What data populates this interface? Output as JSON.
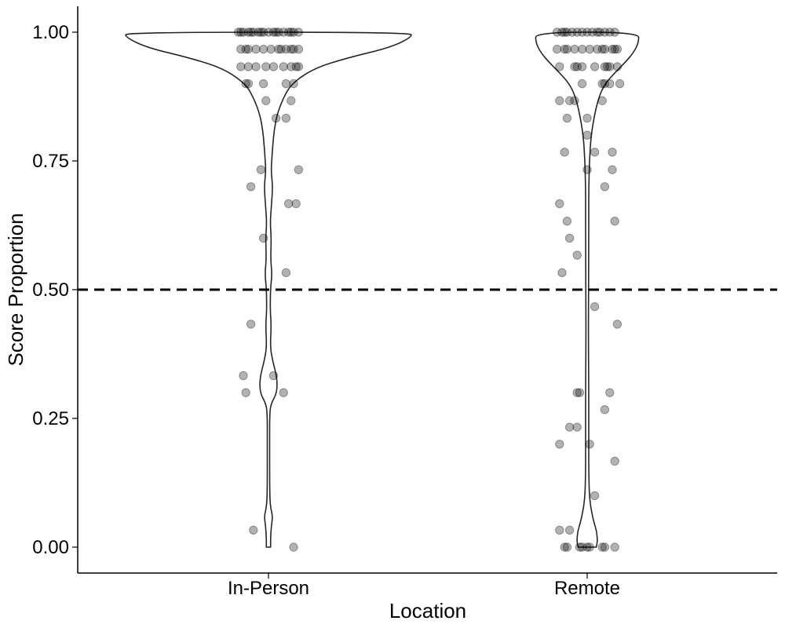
{
  "chart_data": {
    "type": "violin",
    "title": "",
    "xlabel": "Location",
    "ylabel": "Score Proportion",
    "categories": [
      "In-Person",
      "Remote"
    ],
    "ylim": [
      -0.05,
      1.05
    ],
    "yticks": [
      0.0,
      0.25,
      0.5,
      0.75,
      1.0
    ],
    "ytick_labels": [
      "0.00",
      "0.25",
      "0.50",
      "0.75",
      "1.00"
    ],
    "reference_line": {
      "y": 0.5,
      "style": "dashed"
    },
    "grid": false,
    "legend": "none",
    "point_color": "#000000",
    "violin_color": "#262626",
    "density": {
      "In-Person": [
        [
          0.0,
          0.015
        ],
        [
          0.02,
          0.015
        ],
        [
          0.04,
          0.02
        ],
        [
          0.06,
          0.03
        ],
        [
          0.08,
          0.012
        ],
        [
          0.12,
          0.008
        ],
        [
          0.2,
          0.008
        ],
        [
          0.26,
          0.008
        ],
        [
          0.28,
          0.02
        ],
        [
          0.3,
          0.06
        ],
        [
          0.33,
          0.06
        ],
        [
          0.36,
          0.03
        ],
        [
          0.39,
          0.012
        ],
        [
          0.43,
          0.02
        ],
        [
          0.46,
          0.012
        ],
        [
          0.5,
          0.014
        ],
        [
          0.53,
          0.025
        ],
        [
          0.56,
          0.015
        ],
        [
          0.6,
          0.02
        ],
        [
          0.63,
          0.012
        ],
        [
          0.66,
          0.02
        ],
        [
          0.7,
          0.03
        ],
        [
          0.73,
          0.018
        ],
        [
          0.76,
          0.025
        ],
        [
          0.78,
          0.03
        ],
        [
          0.81,
          0.04
        ],
        [
          0.84,
          0.06
        ],
        [
          0.87,
          0.1
        ],
        [
          0.9,
          0.16
        ],
        [
          0.93,
          0.32
        ],
        [
          0.95,
          0.55
        ],
        [
          0.97,
          0.85
        ],
        [
          0.99,
          1.0
        ],
        [
          1.0,
          1.0
        ]
      ],
      "Remote": [
        [
          0.0,
          0.14
        ],
        [
          0.01,
          0.16
        ],
        [
          0.03,
          0.15
        ],
        [
          0.05,
          0.1
        ],
        [
          0.08,
          0.05
        ],
        [
          0.11,
          0.03
        ],
        [
          0.15,
          0.025
        ],
        [
          0.2,
          0.025
        ],
        [
          0.25,
          0.025
        ],
        [
          0.3,
          0.025
        ],
        [
          0.35,
          0.022
        ],
        [
          0.4,
          0.02
        ],
        [
          0.45,
          0.02
        ],
        [
          0.5,
          0.022
        ],
        [
          0.55,
          0.022
        ],
        [
          0.6,
          0.025
        ],
        [
          0.65,
          0.025
        ],
        [
          0.7,
          0.025
        ],
        [
          0.75,
          0.035
        ],
        [
          0.8,
          0.06
        ],
        [
          0.85,
          0.13
        ],
        [
          0.88,
          0.2
        ],
        [
          0.9,
          0.28
        ],
        [
          0.92,
          0.42
        ],
        [
          0.94,
          0.58
        ],
        [
          0.96,
          0.72
        ],
        [
          0.98,
          0.8
        ],
        [
          1.0,
          0.8
        ]
      ]
    },
    "points": {
      "In-Person": [
        [
          -0.12,
          1.0
        ],
        [
          -0.1,
          1.0
        ],
        [
          -0.08,
          1.0
        ],
        [
          -0.06,
          1.0
        ],
        [
          -0.04,
          1.0
        ],
        [
          -0.02,
          1.0
        ],
        [
          0.0,
          1.0
        ],
        [
          0.02,
          1.0
        ],
        [
          0.04,
          1.0
        ],
        [
          0.06,
          1.0
        ],
        [
          0.08,
          1.0
        ],
        [
          0.1,
          1.0
        ],
        [
          0.12,
          1.0
        ],
        [
          -0.11,
          1.0
        ],
        [
          -0.07,
          1.0
        ],
        [
          0.03,
          1.0
        ],
        [
          0.09,
          1.0
        ],
        [
          -0.03,
          1.0
        ],
        [
          -0.11,
          0.967
        ],
        [
          -0.08,
          0.967
        ],
        [
          -0.05,
          0.967
        ],
        [
          -0.02,
          0.967
        ],
        [
          0.01,
          0.967
        ],
        [
          0.04,
          0.967
        ],
        [
          0.07,
          0.967
        ],
        [
          0.1,
          0.967
        ],
        [
          0.12,
          0.967
        ],
        [
          -0.09,
          0.967
        ],
        [
          0.05,
          0.967
        ],
        [
          0.09,
          0.967
        ],
        [
          -0.11,
          0.933
        ],
        [
          -0.08,
          0.933
        ],
        [
          -0.05,
          0.933
        ],
        [
          -0.01,
          0.933
        ],
        [
          0.02,
          0.933
        ],
        [
          0.06,
          0.933
        ],
        [
          0.09,
          0.933
        ],
        [
          0.11,
          0.933
        ],
        [
          0.12,
          0.933
        ],
        [
          -0.09,
          0.9
        ],
        [
          -0.08,
          0.9
        ],
        [
          -0.02,
          0.9
        ],
        [
          0.07,
          0.9
        ],
        [
          0.1,
          0.9
        ],
        [
          -0.01,
          0.867
        ],
        [
          0.09,
          0.867
        ],
        [
          0.03,
          0.833
        ],
        [
          0.07,
          0.833
        ],
        [
          -0.03,
          0.733
        ],
        [
          0.12,
          0.733
        ],
        [
          -0.07,
          0.7
        ],
        [
          0.08,
          0.667
        ],
        [
          0.11,
          0.667
        ],
        [
          -0.02,
          0.6
        ],
        [
          0.07,
          0.533
        ],
        [
          -0.07,
          0.433
        ],
        [
          -0.1,
          0.333
        ],
        [
          0.02,
          0.333
        ],
        [
          -0.09,
          0.3
        ],
        [
          0.06,
          0.3
        ],
        [
          -0.06,
          0.033
        ],
        [
          0.1,
          0.0
        ]
      ],
      "Remote": [
        [
          -0.12,
          1.0
        ],
        [
          -0.1,
          1.0
        ],
        [
          -0.08,
          1.0
        ],
        [
          -0.06,
          1.0
        ],
        [
          -0.04,
          1.0
        ],
        [
          -0.02,
          1.0
        ],
        [
          0.0,
          1.0
        ],
        [
          0.02,
          1.0
        ],
        [
          0.04,
          1.0
        ],
        [
          0.07,
          1.0
        ],
        [
          0.09,
          1.0
        ],
        [
          0.11,
          1.0
        ],
        [
          -0.09,
          1.0
        ],
        [
          0.05,
          1.0
        ],
        [
          -0.12,
          0.967
        ],
        [
          -0.09,
          0.967
        ],
        [
          -0.05,
          0.967
        ],
        [
          -0.02,
          0.967
        ],
        [
          0.01,
          0.967
        ],
        [
          0.04,
          0.967
        ],
        [
          0.07,
          0.967
        ],
        [
          0.1,
          0.967
        ],
        [
          0.12,
          0.967
        ],
        [
          -0.08,
          0.967
        ],
        [
          0.06,
          0.967
        ],
        [
          0.11,
          0.967
        ],
        [
          -0.11,
          0.933
        ],
        [
          -0.05,
          0.933
        ],
        [
          -0.02,
          0.933
        ],
        [
          0.03,
          0.933
        ],
        [
          0.07,
          0.933
        ],
        [
          0.09,
          0.933
        ],
        [
          0.12,
          0.933
        ],
        [
          -0.04,
          0.933
        ],
        [
          0.08,
          0.933
        ],
        [
          -0.02,
          0.9
        ],
        [
          0.06,
          0.9
        ],
        [
          0.07,
          0.9
        ],
        [
          0.09,
          0.9
        ],
        [
          0.13,
          0.9
        ],
        [
          -0.11,
          0.867
        ],
        [
          -0.07,
          0.867
        ],
        [
          -0.05,
          0.867
        ],
        [
          0.06,
          0.867
        ],
        [
          -0.08,
          0.833
        ],
        [
          0.0,
          0.833
        ],
        [
          0.0,
          0.8
        ],
        [
          -0.09,
          0.767
        ],
        [
          0.03,
          0.767
        ],
        [
          0.1,
          0.767
        ],
        [
          0.0,
          0.733
        ],
        [
          0.1,
          0.733
        ],
        [
          0.07,
          0.7
        ],
        [
          -0.11,
          0.667
        ],
        [
          -0.08,
          0.633
        ],
        [
          0.11,
          0.633
        ],
        [
          -0.07,
          0.6
        ],
        [
          -0.04,
          0.567
        ],
        [
          -0.1,
          0.533
        ],
        [
          0.03,
          0.467
        ],
        [
          0.12,
          0.433
        ],
        [
          -0.04,
          0.3
        ],
        [
          -0.03,
          0.3
        ],
        [
          0.09,
          0.3
        ],
        [
          0.07,
          0.267
        ],
        [
          -0.07,
          0.233
        ],
        [
          -0.04,
          0.233
        ],
        [
          -0.11,
          0.2
        ],
        [
          0.01,
          0.2
        ],
        [
          0.11,
          0.167
        ],
        [
          0.03,
          0.1
        ],
        [
          -0.11,
          0.033
        ],
        [
          -0.07,
          0.033
        ],
        [
          -0.09,
          0.0
        ],
        [
          -0.08,
          0.0
        ],
        [
          -0.03,
          0.0
        ],
        [
          -0.02,
          0.0
        ],
        [
          0.0,
          0.0
        ],
        [
          0.01,
          0.0
        ],
        [
          0.06,
          0.0
        ],
        [
          0.07,
          0.0
        ],
        [
          0.11,
          0.0
        ]
      ]
    }
  }
}
